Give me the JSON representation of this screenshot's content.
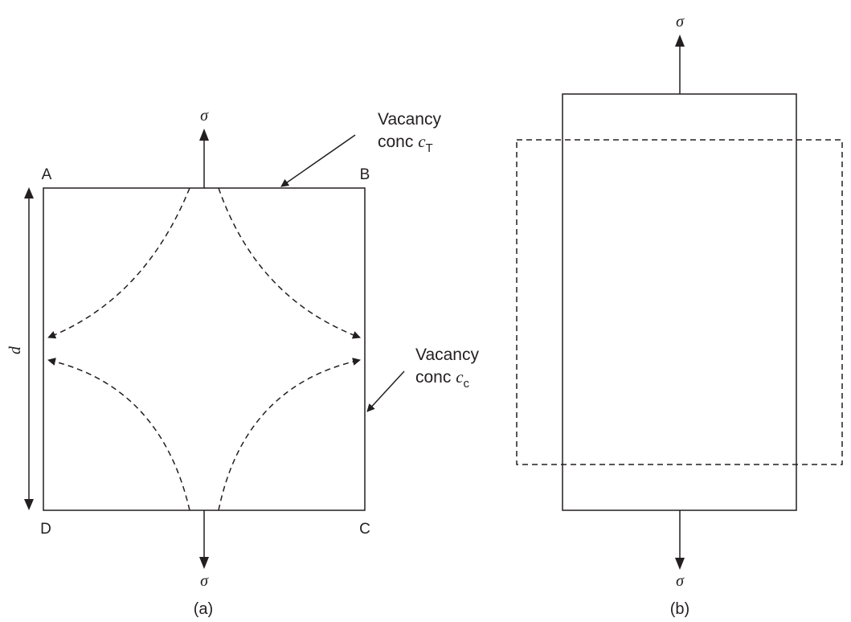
{
  "panel_a": {
    "corners": {
      "top_left": "A",
      "top_right": "B",
      "bottom_right": "C",
      "bottom_left": "D"
    },
    "stress_top": "σ",
    "stress_bottom": "σ",
    "dimension": "d",
    "label_tension": {
      "line1": "Vacancy",
      "line2_prefix": "conc ",
      "var": "c",
      "sub": "T"
    },
    "label_compression": {
      "line1": "Vacancy",
      "line2_prefix": "conc ",
      "var": "c",
      "sub": "c"
    },
    "caption": "(a)"
  },
  "panel_b": {
    "stress_top": "σ",
    "stress_bottom": "σ",
    "caption": "(b)"
  }
}
